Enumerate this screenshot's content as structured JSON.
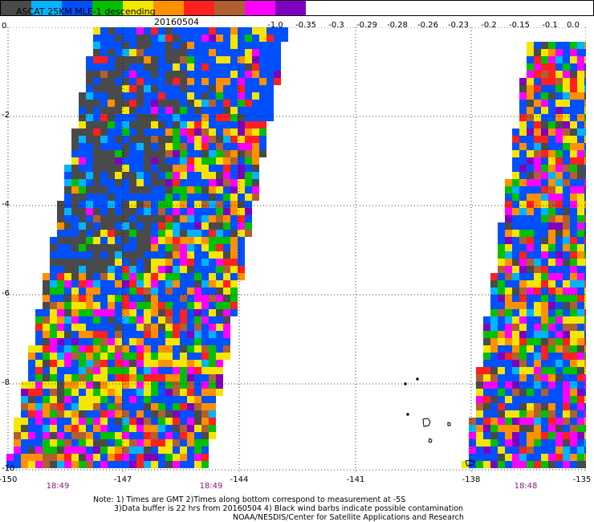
{
  "header": {
    "title": "ASCAT 25KM MLE-1 descending",
    "date": "20160504"
  },
  "colorbar": {
    "colors": [
      "#4a4a4a",
      "#00b4ff",
      "#0050ff",
      "#00c000",
      "#f5e600",
      "#ff9000",
      "#ff2020",
      "#b06030",
      "#ff00ff",
      "#8000c0"
    ],
    "labels": [
      "-1.0",
      "-0.35",
      "-0.3",
      "-0.29",
      "-0.28",
      "-0.26",
      "-0.23",
      "-0.2",
      "-0.15",
      "-0.1",
      "0.0"
    ]
  },
  "axes": {
    "y_ticks": [
      "0",
      "-2",
      "-4",
      "-6",
      "-8",
      "-10"
    ],
    "x_ticks": [
      "-150",
      "-147",
      "-144",
      "-141",
      "-138",
      "-135"
    ]
  },
  "pass_times": [
    "18:49",
    "18:49",
    "18:48"
  ],
  "notes": {
    "line1": "Note: 1) Times are GMT 2)Times along bottom correspond to measurement at -5S",
    "line2": "3)Data buffer is 22 hrs from 20160504 4) Black wind barbs indicate possible contamination",
    "line3": "NOAA/NESDIS/Center for Satellite Applications and Research"
  }
}
